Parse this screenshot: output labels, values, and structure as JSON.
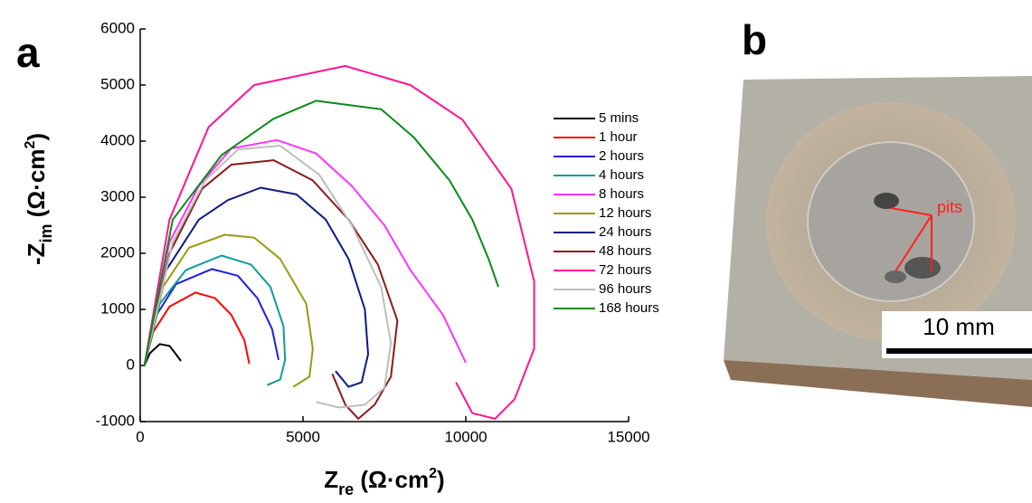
{
  "chart_data": {
    "type": "line",
    "panel_label": "a",
    "xlabel": [
      "Z",
      "re",
      " (Ω·cm",
      "2",
      ")"
    ],
    "ylabel": [
      "-Z",
      "im",
      " (Ω·cm",
      "2",
      ")"
    ],
    "xlim": [
      0,
      15000
    ],
    "xticks": [
      0,
      5000,
      10000,
      15000
    ],
    "ylim": [
      -1000,
      6000
    ],
    "yticks": [
      -1000,
      0,
      1000,
      2000,
      3000,
      4000,
      5000,
      6000
    ],
    "series": [
      {
        "name": "5 mins",
        "color": "#000000",
        "x": [
          130,
          300,
          600,
          900,
          1100,
          1250
        ],
        "y": [
          0,
          220,
          380,
          350,
          200,
          80
        ]
      },
      {
        "name": "1 hour",
        "color": "#ff0000",
        "x": [
          130,
          400,
          900,
          1700,
          2300,
          2800,
          3200,
          3350
        ],
        "y": [
          0,
          600,
          1050,
          1300,
          1200,
          900,
          450,
          30
        ]
      },
      {
        "name": "2 hours",
        "color": "#1f1fe0",
        "x": [
          130,
          500,
          1100,
          2200,
          3000,
          3600,
          4050,
          4250
        ],
        "y": [
          0,
          900,
          1450,
          1720,
          1600,
          1200,
          650,
          100
        ]
      },
      {
        "name": "4 hours",
        "color": "#0f9a9a",
        "x": [
          130,
          600,
          1400,
          2500,
          3400,
          4000,
          4400,
          4450,
          4300,
          3900
        ],
        "y": [
          0,
          1100,
          1700,
          1960,
          1800,
          1400,
          700,
          100,
          -250,
          -350
        ]
      },
      {
        "name": "8 hours",
        "color": "#ff33ff",
        "x": [
          130,
          900,
          1800,
          2800,
          4200,
          5400,
          6500,
          7500,
          8300,
          9300,
          10000
        ],
        "y": [
          0,
          2200,
          3200,
          3870,
          4020,
          3780,
          3200,
          2500,
          1700,
          900,
          50
        ]
      },
      {
        "name": "12 hours",
        "color": "#9a9a14",
        "x": [
          130,
          700,
          1500,
          2600,
          3500,
          4300,
          5100,
          5300,
          5200,
          4700
        ],
        "y": [
          0,
          1400,
          2100,
          2330,
          2280,
          1900,
          1100,
          300,
          -200,
          -380
        ]
      },
      {
        "name": "24 hours",
        "color": "#0c1a80",
        "x": [
          130,
          800,
          1800,
          2700,
          3700,
          4800,
          5700,
          6400,
          6900,
          7000,
          6800,
          6400,
          6000
        ],
        "y": [
          0,
          1700,
          2600,
          2950,
          3170,
          3050,
          2600,
          1900,
          1000,
          200,
          -300,
          -380,
          -100
        ]
      },
      {
        "name": "48 hours",
        "color": "#8b1a1a",
        "x": [
          130,
          900,
          1900,
          2800,
          4100,
          5300,
          6400,
          7300,
          7900,
          7700,
          7200,
          6700,
          6300,
          5900
        ],
        "y": [
          0,
          2000,
          3150,
          3580,
          3660,
          3300,
          2600,
          1800,
          800,
          -200,
          -700,
          -950,
          -700,
          -150
        ]
      },
      {
        "name": "72 hours",
        "color": "#ff1493",
        "x": [
          130,
          900,
          2100,
          3500,
          6300,
          8300,
          9900,
          11400,
          12100,
          12100,
          11500,
          10900,
          10200,
          9700
        ],
        "y": [
          0,
          2600,
          4250,
          5000,
          5340,
          5000,
          4380,
          3150,
          1500,
          300,
          -600,
          -950,
          -850,
          -300
        ]
      },
      {
        "name": "96 hours",
        "color": "#bdbdbd",
        "x": [
          130,
          1000,
          2000,
          3000,
          4300,
          5500,
          6500,
          7400,
          7700,
          7500,
          6900,
          6100,
          5400
        ],
        "y": [
          0,
          2200,
          3300,
          3850,
          3920,
          3400,
          2500,
          1400,
          400,
          -400,
          -700,
          -750,
          -650
        ]
      },
      {
        "name": "168 hours",
        "color": "#0a8a1a",
        "x": [
          130,
          1000,
          2500,
          4100,
          5400,
          7400,
          8400,
          9500,
          10200,
          10700,
          11000
        ],
        "y": [
          0,
          2600,
          3750,
          4400,
          4720,
          4570,
          4070,
          3300,
          2600,
          1900,
          1400
        ]
      }
    ]
  },
  "photo": {
    "panel_label": "b",
    "annotation": "pits",
    "scale_bar": "10 mm"
  }
}
